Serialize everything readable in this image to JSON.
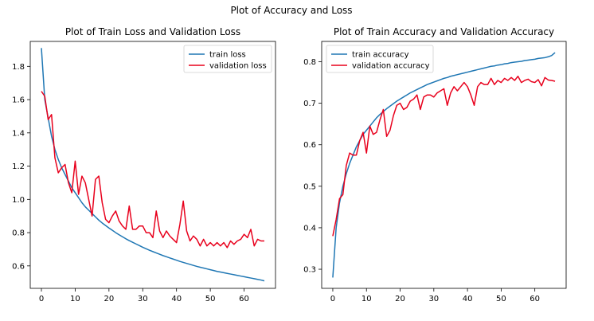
{
  "figure": {
    "suptitle": "Plot of Accuracy and Loss"
  },
  "colors": {
    "train": "#1f77b4",
    "validation": "#e8001c"
  },
  "chart_data": [
    {
      "type": "line",
      "title": "Plot of Train Loss and Validation Loss",
      "xlabel": "",
      "ylabel": "",
      "xlim": [
        -3.3,
        69.3
      ],
      "ylim": [
        0.465,
        1.95
      ],
      "xticks": [
        0,
        10,
        20,
        30,
        40,
        50,
        60
      ],
      "yticks": [
        0.6,
        0.8,
        1.0,
        1.2,
        1.4,
        1.6,
        1.8
      ],
      "yticklabels": [
        "0.6",
        "0.8",
        "1.0",
        "1.2",
        "1.4",
        "1.6",
        "1.8"
      ],
      "grid": false,
      "legend_position": "upper right",
      "series": [
        {
          "name": "train loss",
          "color": "#1f77b4",
          "x": [
            0,
            1,
            2,
            3,
            4,
            5,
            6,
            7,
            8,
            9,
            10,
            11,
            12,
            13,
            14,
            15,
            16,
            17,
            18,
            19,
            20,
            21,
            22,
            23,
            24,
            25,
            26,
            27,
            28,
            29,
            30,
            31,
            32,
            33,
            34,
            35,
            36,
            37,
            38,
            39,
            40,
            41,
            42,
            43,
            44,
            45,
            46,
            47,
            48,
            49,
            50,
            51,
            52,
            53,
            54,
            55,
            56,
            57,
            58,
            59,
            60,
            61,
            62,
            63,
            64,
            65,
            66
          ],
          "values": [
            1.91,
            1.6,
            1.49,
            1.38,
            1.3,
            1.24,
            1.19,
            1.15,
            1.11,
            1.07,
            1.04,
            1.01,
            0.98,
            0.955,
            0.935,
            0.915,
            0.895,
            0.875,
            0.858,
            0.843,
            0.828,
            0.814,
            0.8,
            0.787,
            0.775,
            0.763,
            0.752,
            0.742,
            0.732,
            0.722,
            0.712,
            0.703,
            0.694,
            0.686,
            0.678,
            0.67,
            0.662,
            0.655,
            0.648,
            0.641,
            0.634,
            0.627,
            0.621,
            0.615,
            0.609,
            0.603,
            0.597,
            0.592,
            0.587,
            0.582,
            0.577,
            0.572,
            0.567,
            0.563,
            0.559,
            0.555,
            0.551,
            0.547,
            0.543,
            0.539,
            0.535,
            0.531,
            0.527,
            0.523,
            0.519,
            0.515,
            0.51
          ]
        },
        {
          "name": "validation loss",
          "color": "#e8001c",
          "x": [
            0,
            1,
            2,
            3,
            4,
            5,
            6,
            7,
            8,
            9,
            10,
            11,
            12,
            13,
            14,
            15,
            16,
            17,
            18,
            19,
            20,
            21,
            22,
            23,
            24,
            25,
            26,
            27,
            28,
            29,
            30,
            31,
            32,
            33,
            34,
            35,
            36,
            37,
            38,
            39,
            40,
            41,
            42,
            43,
            44,
            45,
            46,
            47,
            48,
            49,
            50,
            51,
            52,
            53,
            54,
            55,
            56,
            57,
            58,
            59,
            60,
            61,
            62,
            63,
            64,
            65,
            66
          ],
          "values": [
            1.65,
            1.62,
            1.48,
            1.51,
            1.25,
            1.16,
            1.19,
            1.21,
            1.1,
            1.04,
            1.23,
            1.03,
            1.14,
            1.1,
            1.0,
            0.9,
            1.12,
            1.14,
            0.98,
            0.88,
            0.86,
            0.9,
            0.93,
            0.87,
            0.84,
            0.82,
            0.96,
            0.82,
            0.82,
            0.84,
            0.84,
            0.8,
            0.8,
            0.77,
            0.93,
            0.81,
            0.77,
            0.81,
            0.78,
            0.76,
            0.74,
            0.85,
            0.99,
            0.81,
            0.75,
            0.78,
            0.76,
            0.72,
            0.76,
            0.72,
            0.74,
            0.72,
            0.74,
            0.72,
            0.74,
            0.71,
            0.75,
            0.73,
            0.75,
            0.76,
            0.79,
            0.77,
            0.82,
            0.72,
            0.76,
            0.75,
            0.75
          ]
        }
      ]
    },
    {
      "type": "line",
      "title": "Plot of Train Accuracy and Validation Accuracy",
      "xlabel": "",
      "ylabel": "",
      "xlim": [
        -3.3,
        69.3
      ],
      "ylim": [
        0.254,
        0.849
      ],
      "xticks": [
        0,
        10,
        20,
        30,
        40,
        50,
        60
      ],
      "yticks": [
        0.3,
        0.4,
        0.5,
        0.6,
        0.7,
        0.8
      ],
      "yticklabels": [
        "0.3",
        "0.4",
        "0.5",
        "0.6",
        "0.7",
        "0.8"
      ],
      "grid": false,
      "legend_position": "upper left",
      "series": [
        {
          "name": "train accuracy",
          "color": "#1f77b4",
          "x": [
            0,
            1,
            2,
            3,
            4,
            5,
            6,
            7,
            8,
            9,
            10,
            11,
            12,
            13,
            14,
            15,
            16,
            17,
            18,
            19,
            20,
            21,
            22,
            23,
            24,
            25,
            26,
            27,
            28,
            29,
            30,
            31,
            32,
            33,
            34,
            35,
            36,
            37,
            38,
            39,
            40,
            41,
            42,
            43,
            44,
            45,
            46,
            47,
            48,
            49,
            50,
            51,
            52,
            53,
            54,
            55,
            56,
            57,
            58,
            59,
            60,
            61,
            62,
            63,
            64,
            65,
            66
          ],
          "values": [
            0.28,
            0.4,
            0.46,
            0.5,
            0.53,
            0.555,
            0.575,
            0.595,
            0.61,
            0.625,
            0.635,
            0.645,
            0.655,
            0.665,
            0.673,
            0.68,
            0.687,
            0.693,
            0.699,
            0.705,
            0.71,
            0.715,
            0.72,
            0.725,
            0.729,
            0.733,
            0.737,
            0.741,
            0.745,
            0.748,
            0.751,
            0.754,
            0.757,
            0.76,
            0.762,
            0.765,
            0.767,
            0.769,
            0.771,
            0.773,
            0.775,
            0.777,
            0.779,
            0.781,
            0.783,
            0.785,
            0.787,
            0.789,
            0.79,
            0.792,
            0.793,
            0.795,
            0.796,
            0.798,
            0.799,
            0.8,
            0.801,
            0.803,
            0.804,
            0.805,
            0.806,
            0.808,
            0.809,
            0.81,
            0.812,
            0.815,
            0.822
          ]
        },
        {
          "name": "validation accuracy",
          "color": "#e8001c",
          "x": [
            0,
            1,
            2,
            3,
            4,
            5,
            6,
            7,
            8,
            9,
            10,
            11,
            12,
            13,
            14,
            15,
            16,
            17,
            18,
            19,
            20,
            21,
            22,
            23,
            24,
            25,
            26,
            27,
            28,
            29,
            30,
            31,
            32,
            33,
            34,
            35,
            36,
            37,
            38,
            39,
            40,
            41,
            42,
            43,
            44,
            45,
            46,
            47,
            48,
            49,
            50,
            51,
            52,
            53,
            54,
            55,
            56,
            57,
            58,
            59,
            60,
            61,
            62,
            63,
            64,
            65,
            66
          ],
          "values": [
            0.38,
            0.42,
            0.47,
            0.48,
            0.55,
            0.58,
            0.575,
            0.575,
            0.61,
            0.63,
            0.58,
            0.645,
            0.625,
            0.63,
            0.66,
            0.685,
            0.62,
            0.635,
            0.67,
            0.695,
            0.7,
            0.685,
            0.69,
            0.705,
            0.71,
            0.72,
            0.685,
            0.715,
            0.72,
            0.72,
            0.715,
            0.725,
            0.73,
            0.735,
            0.695,
            0.725,
            0.74,
            0.73,
            0.74,
            0.75,
            0.74,
            0.72,
            0.695,
            0.74,
            0.75,
            0.745,
            0.745,
            0.76,
            0.745,
            0.755,
            0.75,
            0.76,
            0.755,
            0.762,
            0.755,
            0.765,
            0.75,
            0.755,
            0.758,
            0.752,
            0.75,
            0.757,
            0.742,
            0.762,
            0.756,
            0.755,
            0.753
          ]
        }
      ]
    }
  ]
}
